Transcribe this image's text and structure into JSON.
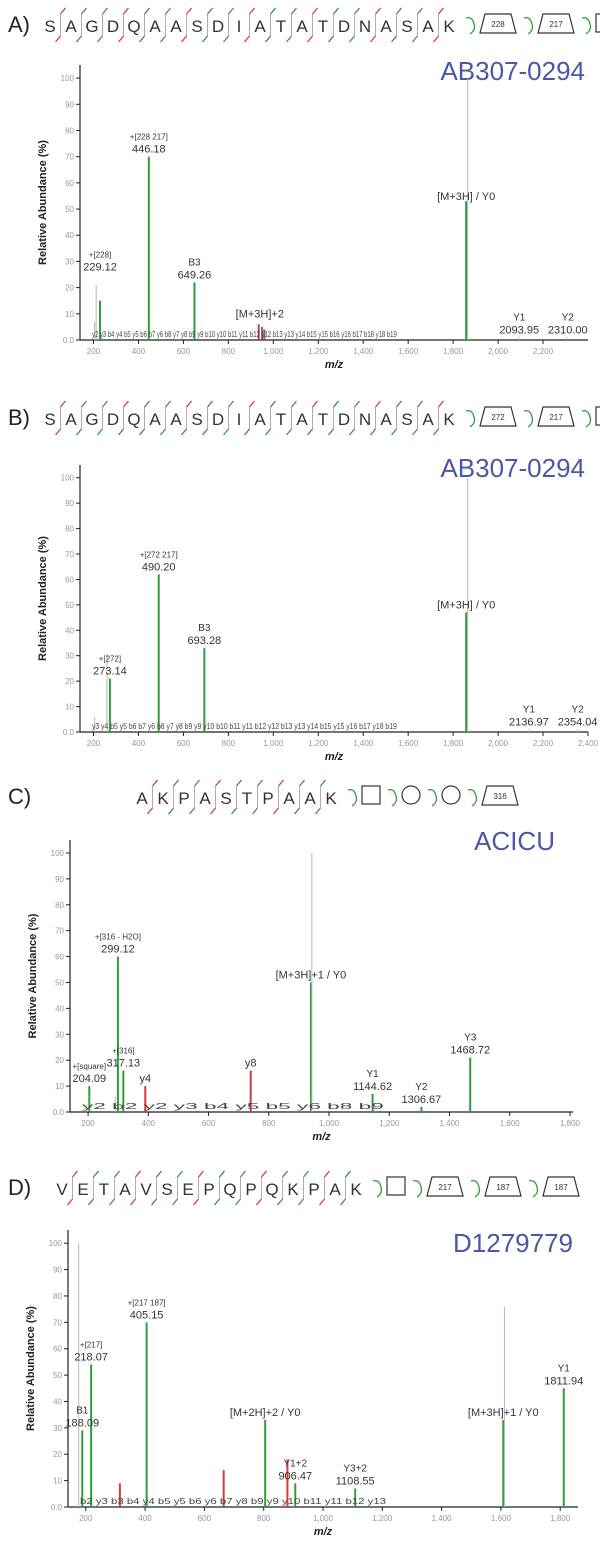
{
  "colors": {
    "green": "#2e9e3a",
    "red": "#d23b3b",
    "blue": "#2b78b8",
    "gray": "#b8b8b8",
    "title": "#4a56a6",
    "axis": "#222222"
  },
  "chart_data": [
    {
      "type": "bar",
      "panel_label": "A)",
      "dataset": "AB307-0294",
      "sequence": [
        "S",
        "A",
        "G",
        "D",
        "Q",
        "A",
        "A",
        "S",
        "D",
        "I",
        "A",
        "T",
        "A",
        "T",
        "D",
        "N",
        "A",
        "S",
        "A",
        "K"
      ],
      "glycans": [
        "228",
        "217",
        "square"
      ],
      "ylabel": "Relative Abundance (%)",
      "xlabel": "m/z",
      "xlim": [
        140,
        2400
      ],
      "ylim": [
        0,
        105
      ],
      "xticks": [
        "200",
        "400",
        "600",
        "800",
        "1,000",
        "1,200",
        "1,400",
        "1,600",
        "1,800",
        "2,000",
        "2,200"
      ],
      "xtick_values": [
        200,
        400,
        600,
        800,
        1000,
        1200,
        1400,
        1600,
        1800,
        2000,
        2200
      ],
      "yticks": [
        "0.0",
        "10",
        "20",
        "30",
        "40",
        "50",
        "60",
        "70",
        "80",
        "90",
        "100"
      ],
      "peaks": [
        {
          "x": 229.12,
          "y": 15,
          "color": "green"
        },
        {
          "x": 446.18,
          "y": 70,
          "color": "green"
        },
        {
          "x": 649.26,
          "y": 22,
          "color": "green"
        },
        {
          "x": 1858,
          "y": 53,
          "color": "green"
        },
        {
          "x": 1865,
          "y": 100,
          "color": "gray"
        },
        {
          "x": 205,
          "y": 7,
          "color": "gray"
        },
        {
          "x": 212,
          "y": 21,
          "color": "gray"
        },
        {
          "x": 935,
          "y": 6,
          "color": "red"
        },
        {
          "x": 950,
          "y": 5,
          "color": "blue"
        },
        {
          "x": 960,
          "y": 4,
          "color": "red"
        },
        {
          "x": 2093.95,
          "y": 1,
          "color": "gray"
        },
        {
          "x": 2310.0,
          "y": 1,
          "color": "gray"
        }
      ],
      "annotations": [
        {
          "label": "446.18",
          "glycan": "+[228 217]",
          "x": 446.18,
          "y": 70
        },
        {
          "label": "229.12",
          "glycan": "+[228]",
          "x": 229.12,
          "y": 25
        },
        {
          "label": "649.26",
          "ion": "B3",
          "x": 649.26,
          "y": 22
        },
        {
          "label": "[M+3H] / Y0",
          "x": 1858,
          "y": 52
        },
        {
          "label": "[M+3H]+2",
          "x": 940,
          "y": 7
        },
        {
          "label": "2093.95",
          "ion": "Y1",
          "x": 2093.95,
          "y": 1
        },
        {
          "label": "2310.00",
          "ion": "Y2",
          "x": 2310.0,
          "y": 1
        }
      ],
      "fragment_labels": "y2 y3 b4 y4 b5 y5 b6 b7 y6 b8 y7 y8 b9 y9 b10 y10 b11 y11 b12 y12 b13 y13 y14 b15 y15 b16 y16 b17 b18 y18 b19"
    },
    {
      "type": "bar",
      "panel_label": "B)",
      "dataset": "AB307-0294",
      "sequence": [
        "S",
        "A",
        "G",
        "D",
        "Q",
        "A",
        "A",
        "S",
        "D",
        "I",
        "A",
        "T",
        "A",
        "T",
        "D",
        "N",
        "A",
        "S",
        "A",
        "K"
      ],
      "glycans": [
        "272",
        "217",
        "square"
      ],
      "ylabel": "Relative Abundance (%)",
      "xlabel": "m/z",
      "xlim": [
        140,
        2400
      ],
      "ylim": [
        0,
        105
      ],
      "xticks": [
        "200",
        "400",
        "600",
        "800",
        "1,000",
        "1,200",
        "1,400",
        "1,600",
        "1,800",
        "2,000",
        "2,200",
        "2,400"
      ],
      "xtick_values": [
        200,
        400,
        600,
        800,
        1000,
        1200,
        1400,
        1600,
        1800,
        2000,
        2200,
        2400
      ],
      "yticks": [
        "0.0",
        "10",
        "20",
        "30",
        "40",
        "50",
        "60",
        "70",
        "80",
        "90",
        "100"
      ],
      "peaks": [
        {
          "x": 273.14,
          "y": 21,
          "color": "green"
        },
        {
          "x": 490.2,
          "y": 62,
          "color": "green"
        },
        {
          "x": 693.28,
          "y": 33,
          "color": "green"
        },
        {
          "x": 1858,
          "y": 47,
          "color": "green"
        },
        {
          "x": 1865,
          "y": 100,
          "color": "gray"
        },
        {
          "x": 260,
          "y": 31,
          "color": "gray"
        },
        {
          "x": 205,
          "y": 6,
          "color": "gray"
        },
        {
          "x": 2136.97,
          "y": 1,
          "color": "gray"
        },
        {
          "x": 2354.04,
          "y": 1,
          "color": "gray"
        }
      ],
      "annotations": [
        {
          "label": "490.20",
          "glycan": "+[272 217]",
          "x": 490.2,
          "y": 62
        },
        {
          "label": "273.14",
          "glycan": "+[272]",
          "x": 273.14,
          "y": 21
        },
        {
          "label": "693.28",
          "ion": "B3",
          "x": 693.28,
          "y": 33
        },
        {
          "label": "[M+3H] / Y0",
          "x": 1858,
          "y": 47
        },
        {
          "label": "2136.97",
          "ion": "Y1",
          "x": 2136.97,
          "y": 1
        },
        {
          "label": "2354.04",
          "ion": "Y2",
          "x": 2354.04,
          "y": 1
        }
      ],
      "fragment_labels": "y3 y4 b5 y5 b6 b7 y6 b8 y7 y8 b9 y9 y10 b10 b11 y11 b12 y12 b13 y13 y14 b15 y15 y16 b17 y18 b19"
    },
    {
      "type": "bar",
      "panel_label": "C)",
      "dataset": "ACICU",
      "sequence": [
        "A",
        "K",
        "P",
        "A",
        "S",
        "T",
        "P",
        "A",
        "A",
        "K"
      ],
      "glycans": [
        "square",
        "circle",
        "circle",
        "316"
      ],
      "ylabel": "Relative Abundance (%)",
      "xlabel": "m/z",
      "xlim": [
        140,
        1810
      ],
      "ylim": [
        0,
        105
      ],
      "xticks": [
        "200",
        "400",
        "600",
        "800",
        "1,000",
        "1,200",
        "1,400",
        "1,600",
        "1,800"
      ],
      "xtick_values": [
        200,
        400,
        600,
        800,
        1000,
        1200,
        1400,
        1600,
        1800
      ],
      "yticks": [
        "0.0",
        "10",
        "20",
        "30",
        "40",
        "50",
        "60",
        "70",
        "80",
        "90",
        "100"
      ],
      "peaks": [
        {
          "x": 204.09,
          "y": 10,
          "color": "green"
        },
        {
          "x": 299.12,
          "y": 60,
          "color": "green"
        },
        {
          "x": 317.13,
          "y": 16,
          "color": "green"
        },
        {
          "x": 390,
          "y": 10,
          "color": "red"
        },
        {
          "x": 740,
          "y": 16,
          "color": "red"
        },
        {
          "x": 940,
          "y": 50,
          "color": "green"
        },
        {
          "x": 943,
          "y": 100,
          "color": "gray"
        },
        {
          "x": 1144.62,
          "y": 7,
          "color": "green"
        },
        {
          "x": 1306.67,
          "y": 2,
          "color": "green"
        },
        {
          "x": 1468.72,
          "y": 21,
          "color": "green"
        },
        {
          "x": 290,
          "y": 6,
          "color": "gray"
        }
      ],
      "annotations": [
        {
          "label": "299.12",
          "glycan": "+[316 - H2O]",
          "x": 299.12,
          "y": 60
        },
        {
          "label": "317.13",
          "glycan": "+[316]",
          "x": 317.13,
          "y": 16
        },
        {
          "label": "204.09",
          "glycan": "+[square]",
          "x": 204.09,
          "y": 10
        },
        {
          "label": "[M+3H]+1 / Y0",
          "x": 940,
          "y": 50
        },
        {
          "label": "1144.62",
          "ion": "Y1",
          "x": 1144.62,
          "y": 7
        },
        {
          "label": "1306.67",
          "ion": "Y2",
          "x": 1306.67,
          "y": 2
        },
        {
          "label": "1468.72",
          "ion": "Y3",
          "x": 1468.72,
          "y": 21
        },
        {
          "label": "y8",
          "x": 740,
          "y": 16
        },
        {
          "label": "y4",
          "x": 390,
          "y": 10
        }
      ],
      "fragment_labels": "y2 b2 y2 y3 b4 y5 b5 y6 b8 b9"
    },
    {
      "type": "bar",
      "panel_label": "D)",
      "dataset": "D1279779",
      "sequence": [
        "V",
        "E",
        "T",
        "A",
        "V",
        "S",
        "E",
        "P",
        "Q",
        "P",
        "Q",
        "K",
        "P",
        "A",
        "K"
      ],
      "glycans": [
        "square",
        "217",
        "187",
        "187"
      ],
      "ylabel": "Relative Abundance (%)",
      "xlabel": "m/z",
      "xlim": [
        140,
        1860
      ],
      "ylim": [
        0,
        105
      ],
      "xticks": [
        "200",
        "400",
        "600",
        "800",
        "1,000",
        "1,200",
        "1,400",
        "1,600",
        "1,800"
      ],
      "xtick_values": [
        200,
        400,
        600,
        800,
        1000,
        1200,
        1400,
        1600,
        1800
      ],
      "yticks": [
        "0.0",
        "10",
        "20",
        "30",
        "40",
        "50",
        "60",
        "70",
        "80",
        "90",
        "100"
      ],
      "peaks": [
        {
          "x": 188.09,
          "y": 29,
          "color": "green"
        },
        {
          "x": 218.07,
          "y": 54,
          "color": "green"
        },
        {
          "x": 405.15,
          "y": 70,
          "color": "green"
        },
        {
          "x": 805,
          "y": 33,
          "color": "green"
        },
        {
          "x": 1608,
          "y": 33,
          "color": "green"
        },
        {
          "x": 1811.94,
          "y": 45,
          "color": "green"
        },
        {
          "x": 906.47,
          "y": 9,
          "color": "green"
        },
        {
          "x": 1108.55,
          "y": 7,
          "color": "green"
        },
        {
          "x": 176,
          "y": 100,
          "color": "gray"
        },
        {
          "x": 1612,
          "y": 76,
          "color": "gray"
        },
        {
          "x": 665,
          "y": 14,
          "color": "red"
        },
        {
          "x": 880,
          "y": 18,
          "color": "red"
        },
        {
          "x": 315,
          "y": 9,
          "color": "red"
        }
      ],
      "annotations": [
        {
          "label": "405.15",
          "glycan": "+[217 187]",
          "x": 405.15,
          "y": 70
        },
        {
          "label": "218.07",
          "glycan": "+[217]",
          "x": 218.07,
          "y": 54
        },
        {
          "label": "188.09",
          "ion": "B1",
          "x": 188.09,
          "y": 29
        },
        {
          "label": "[M+2H]+2 / Y0",
          "x": 805,
          "y": 33
        },
        {
          "label": "906.47",
          "ion": "Y1+2",
          "x": 906.47,
          "y": 9
        },
        {
          "label": "1108.55",
          "ion": "Y3+2",
          "x": 1108.55,
          "y": 7
        },
        {
          "label": "[M+3H]+1 / Y0",
          "x": 1608,
          "y": 33
        },
        {
          "label": "1811.94",
          "ion": "Y1",
          "x": 1811.94,
          "y": 45
        }
      ],
      "fragment_labels": "b2 y3 b3 b4 y4 b5 y5 b6 y6 b7 y8 b9 y9 y10 b11 y11 b12 y13"
    }
  ]
}
